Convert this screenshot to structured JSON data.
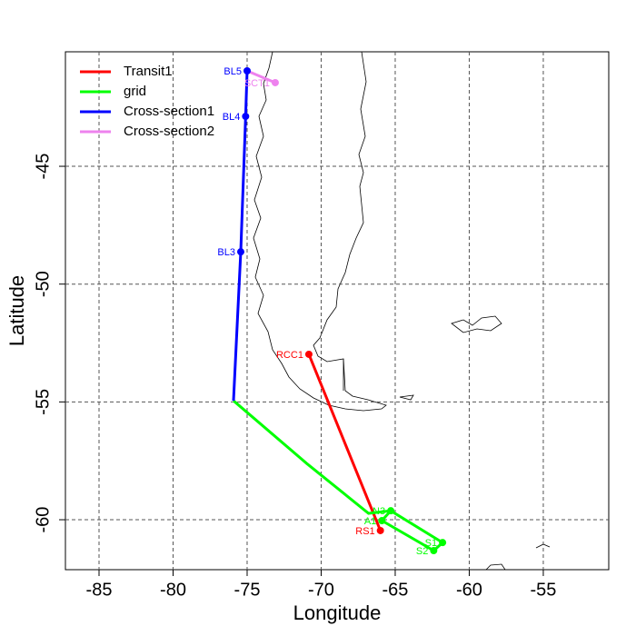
{
  "chart_data": {
    "type": "line",
    "xlabel": "Longitude",
    "ylabel": "Latitude",
    "xlim": [
      -87.27,
      -50.58
    ],
    "ylim": [
      -62.12,
      -40.14
    ],
    "xticks": [
      -85,
      -80,
      -75,
      -70,
      -65,
      -60,
      -55
    ],
    "yticks": [
      -60,
      -55,
      -50,
      -45
    ],
    "grid": true,
    "legend": "top-left",
    "series": [
      {
        "name": "Transit1",
        "color": "#ff0000",
        "x": [
          -70.83,
          -66.0
        ],
        "y": [
          -52.98,
          -60.46
        ]
      },
      {
        "name": "grid",
        "color": "#00ff00",
        "x": [
          -75.92,
          -71.0,
          -66.8,
          -65.3,
          -61.8,
          -62.4,
          -65.9,
          -65.3
        ],
        "y": [
          -54.95,
          -57.6,
          -59.73,
          -59.62,
          -60.97,
          -61.31,
          -60.04,
          -59.62
        ]
      },
      {
        "name": "Cross-section1",
        "color": "#0000ff",
        "x": [
          -75.0,
          -75.1,
          -75.43,
          -75.92
        ],
        "y": [
          -40.95,
          -42.88,
          -48.63,
          -54.95
        ]
      },
      {
        "name": "Cross-section2",
        "color": "#ee82ee",
        "x": [
          -75.0,
          -73.1
        ],
        "y": [
          -40.95,
          -41.45
        ]
      }
    ],
    "stations": [
      {
        "label": "BL5",
        "color": "#0000ff",
        "x": -75.0,
        "y": -40.95
      },
      {
        "label": "SCT1",
        "color": "#ee82ee",
        "x": -73.1,
        "y": -41.45
      },
      {
        "label": "BL4",
        "color": "#0000ff",
        "x": -75.1,
        "y": -42.88
      },
      {
        "label": "BL3",
        "color": "#0000ff",
        "x": -75.43,
        "y": -48.63
      },
      {
        "label": "RCC1",
        "color": "#ff0000",
        "x": -70.83,
        "y": -52.98
      },
      {
        "label": "RS1",
        "color": "#ff0000",
        "x": -66.0,
        "y": -60.46
      },
      {
        "label": "N3",
        "color": "#00ff00",
        "x": -65.3,
        "y": -59.62
      },
      {
        "label": "A1",
        "color": "#00ff00",
        "x": -65.9,
        "y": -60.04
      },
      {
        "label": "S1",
        "color": "#00ff00",
        "x": -61.8,
        "y": -60.97
      },
      {
        "label": "S2",
        "color": "#00ff00",
        "x": -62.4,
        "y": -61.31
      }
    ]
  }
}
